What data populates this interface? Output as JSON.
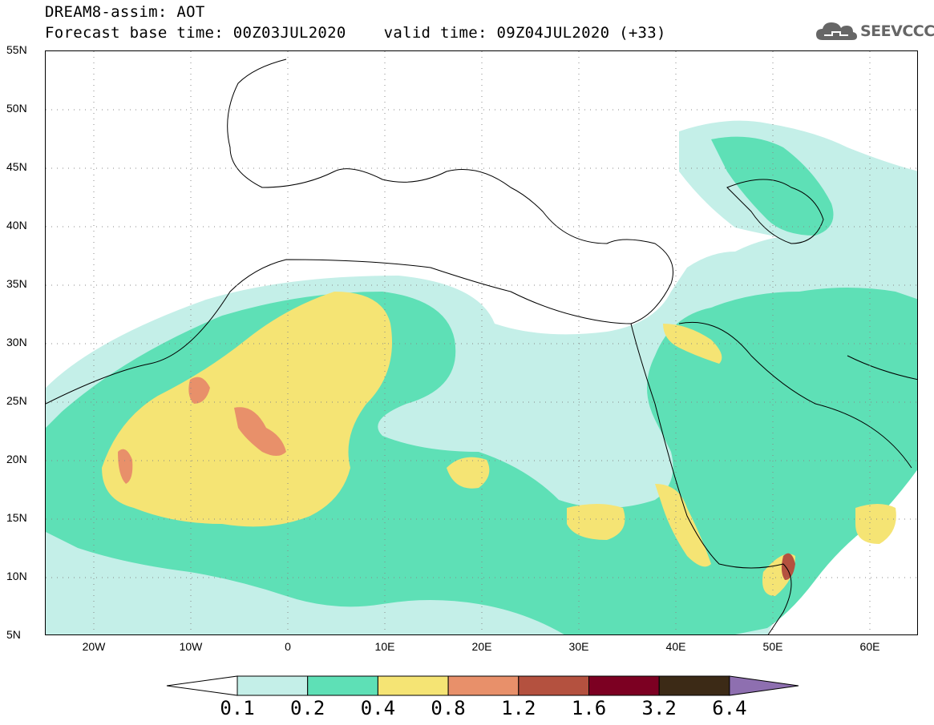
{
  "title": {
    "line1": "DREAM8-assim: AOT",
    "line2": "Forecast base time: 00Z03JUL2020    valid time: 09Z04JUL2020 (+33)"
  },
  "logo": {
    "text": "SEEVCCC",
    "icon": "cloud-icon"
  },
  "map": {
    "lat_labels": [
      "55N",
      "50N",
      "45N",
      "40N",
      "35N",
      "30N",
      "25N",
      "20N",
      "15N",
      "10N",
      "5N"
    ],
    "lon_labels": [
      "20W",
      "10W",
      "0",
      "10E",
      "20E",
      "30E",
      "40E",
      "50E",
      "60E"
    ]
  },
  "colorbar": {
    "labels": [
      "0.1",
      "0.2",
      "0.4",
      "0.8",
      "1.2",
      "1.6",
      "3.2",
      "6.4"
    ],
    "colors": [
      "#ffffff",
      "#c4efe8",
      "#5ee0b6",
      "#f5e474",
      "#e8906a",
      "#b4513f",
      "#7c0022",
      "#3c2a16",
      "#8e6fb0"
    ]
  }
}
